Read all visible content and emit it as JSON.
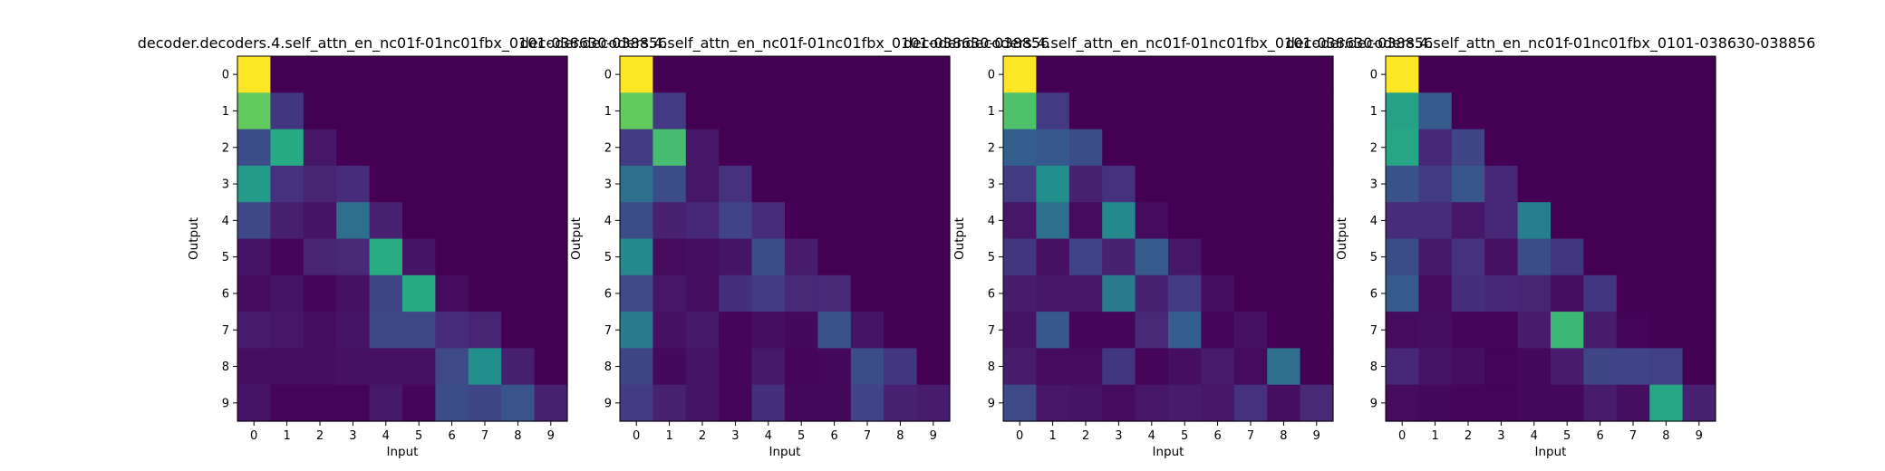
{
  "chart_data": [
    {
      "type": "heatmap",
      "title": "decoder.decoders.4.self_attn_en_nc01f-01nc01fbx_0101-038630-038856",
      "xlabel": "Input",
      "ylabel": "Output",
      "x_ticks": [
        "0",
        "1",
        "2",
        "3",
        "4",
        "5",
        "6",
        "7",
        "8",
        "9"
      ],
      "y_ticks": [
        "0",
        "1",
        "2",
        "3",
        "4",
        "5",
        "6",
        "7",
        "8",
        "9"
      ],
      "colormap": "viridis",
      "value_range": [
        0,
        1
      ],
      "values": [
        [
          1.0,
          0.0,
          0.0,
          0.0,
          0.0,
          0.0,
          0.0,
          0.0,
          0.0,
          0.0
        ],
        [
          0.76,
          0.2,
          0.0,
          0.0,
          0.0,
          0.0,
          0.0,
          0.0,
          0.0,
          0.0
        ],
        [
          0.3,
          0.62,
          0.08,
          0.0,
          0.0,
          0.0,
          0.0,
          0.0,
          0.0,
          0.0
        ],
        [
          0.55,
          0.18,
          0.13,
          0.16,
          0.0,
          0.0,
          0.0,
          0.0,
          0.0,
          0.0
        ],
        [
          0.27,
          0.11,
          0.07,
          0.42,
          0.12,
          0.0,
          0.0,
          0.0,
          0.0,
          0.0
        ],
        [
          0.07,
          0.01,
          0.13,
          0.15,
          0.63,
          0.07,
          0.0,
          0.0,
          0.0,
          0.0
        ],
        [
          0.04,
          0.07,
          0.02,
          0.06,
          0.26,
          0.62,
          0.04,
          0.0,
          0.0,
          0.0
        ],
        [
          0.1,
          0.08,
          0.05,
          0.07,
          0.27,
          0.27,
          0.16,
          0.13,
          0.0,
          0.0
        ],
        [
          0.05,
          0.05,
          0.05,
          0.06,
          0.06,
          0.06,
          0.28,
          0.5,
          0.11,
          0.0
        ],
        [
          0.07,
          0.02,
          0.02,
          0.01,
          0.09,
          0.02,
          0.3,
          0.26,
          0.33,
          0.12
        ]
      ]
    },
    {
      "type": "heatmap",
      "title": "decoder.decoders.4.self_attn_en_nc01f-01nc01fbx_0101-038630-038856",
      "xlabel": "Input",
      "ylabel": "Output",
      "x_ticks": [
        "0",
        "1",
        "2",
        "3",
        "4",
        "5",
        "6",
        "7",
        "8",
        "9"
      ],
      "y_ticks": [
        "0",
        "1",
        "2",
        "3",
        "4",
        "5",
        "6",
        "7",
        "8",
        "9"
      ],
      "colormap": "viridis",
      "value_range": [
        0,
        1
      ],
      "values": [
        [
          1.0,
          0.0,
          0.0,
          0.0,
          0.0,
          0.0,
          0.0,
          0.0,
          0.0,
          0.0
        ],
        [
          0.76,
          0.22,
          0.0,
          0.0,
          0.0,
          0.0,
          0.0,
          0.0,
          0.0,
          0.0
        ],
        [
          0.22,
          0.7,
          0.08,
          0.0,
          0.0,
          0.0,
          0.0,
          0.0,
          0.0,
          0.0
        ],
        [
          0.42,
          0.3,
          0.08,
          0.18,
          0.0,
          0.0,
          0.0,
          0.0,
          0.0,
          0.0
        ],
        [
          0.3,
          0.12,
          0.14,
          0.25,
          0.16,
          0.0,
          0.0,
          0.0,
          0.0,
          0.0
        ],
        [
          0.48,
          0.04,
          0.05,
          0.07,
          0.3,
          0.1,
          0.0,
          0.0,
          0.0,
          0.0
        ],
        [
          0.28,
          0.08,
          0.05,
          0.17,
          0.22,
          0.15,
          0.15,
          0.0,
          0.0,
          0.0
        ],
        [
          0.45,
          0.06,
          0.09,
          0.02,
          0.05,
          0.03,
          0.32,
          0.07,
          0.0,
          0.0
        ],
        [
          0.26,
          0.03,
          0.07,
          0.02,
          0.09,
          0.02,
          0.03,
          0.3,
          0.2,
          0.0
        ],
        [
          0.22,
          0.12,
          0.07,
          0.02,
          0.17,
          0.03,
          0.03,
          0.25,
          0.12,
          0.1
        ]
      ]
    },
    {
      "type": "heatmap",
      "title": "decoder.decoders.4.self_attn_en_nc01f-01nc01fbx_0101-038630-038856",
      "xlabel": "Input",
      "ylabel": "Output",
      "x_ticks": [
        "0",
        "1",
        "2",
        "3",
        "4",
        "5",
        "6",
        "7",
        "8",
        "9"
      ],
      "y_ticks": [
        "0",
        "1",
        "2",
        "3",
        "4",
        "5",
        "6",
        "7",
        "8",
        "9"
      ],
      "colormap": "viridis",
      "value_range": [
        0,
        1
      ],
      "values": [
        [
          1.0,
          0.0,
          0.0,
          0.0,
          0.0,
          0.0,
          0.0,
          0.0,
          0.0,
          0.0
        ],
        [
          0.72,
          0.22,
          0.0,
          0.0,
          0.0,
          0.0,
          0.0,
          0.0,
          0.0,
          0.0
        ],
        [
          0.38,
          0.35,
          0.3,
          0.0,
          0.0,
          0.0,
          0.0,
          0.0,
          0.0,
          0.0
        ],
        [
          0.22,
          0.5,
          0.12,
          0.18,
          0.0,
          0.0,
          0.0,
          0.0,
          0.0,
          0.0
        ],
        [
          0.08,
          0.42,
          0.04,
          0.48,
          0.04,
          0.0,
          0.0,
          0.0,
          0.0,
          0.0
        ],
        [
          0.2,
          0.06,
          0.25,
          0.12,
          0.36,
          0.08,
          0.0,
          0.0,
          0.0,
          0.0
        ],
        [
          0.1,
          0.08,
          0.08,
          0.45,
          0.12,
          0.22,
          0.05,
          0.0,
          0.0,
          0.0
        ],
        [
          0.07,
          0.35,
          0.02,
          0.02,
          0.15,
          0.38,
          0.02,
          0.06,
          0.0,
          0.0
        ],
        [
          0.1,
          0.04,
          0.04,
          0.2,
          0.02,
          0.05,
          0.1,
          0.04,
          0.42,
          0.0
        ],
        [
          0.28,
          0.08,
          0.07,
          0.04,
          0.08,
          0.1,
          0.08,
          0.18,
          0.05,
          0.15
        ]
      ]
    },
    {
      "type": "heatmap",
      "title": "decoder.decoders.4.self_attn_en_nc01f-01nc01fbx_0101-038630-038856",
      "xlabel": "Input",
      "ylabel": "Output",
      "x_ticks": [
        "0",
        "1",
        "2",
        "3",
        "4",
        "5",
        "6",
        "7",
        "8",
        "9"
      ],
      "y_ticks": [
        "0",
        "1",
        "2",
        "3",
        "4",
        "5",
        "6",
        "7",
        "8",
        "9"
      ],
      "colormap": "viridis",
      "value_range": [
        0,
        1
      ],
      "values": [
        [
          1.0,
          0.0,
          0.0,
          0.0,
          0.0,
          0.0,
          0.0,
          0.0,
          0.0,
          0.0
        ],
        [
          0.58,
          0.36,
          0.0,
          0.0,
          0.0,
          0.0,
          0.0,
          0.0,
          0.0,
          0.0
        ],
        [
          0.6,
          0.14,
          0.26,
          0.0,
          0.0,
          0.0,
          0.0,
          0.0,
          0.0,
          0.0
        ],
        [
          0.32,
          0.22,
          0.34,
          0.14,
          0.0,
          0.0,
          0.0,
          0.0,
          0.0,
          0.0
        ],
        [
          0.16,
          0.16,
          0.08,
          0.14,
          0.46,
          0.0,
          0.0,
          0.0,
          0.0,
          0.0
        ],
        [
          0.3,
          0.09,
          0.18,
          0.06,
          0.3,
          0.2,
          0.0,
          0.0,
          0.0,
          0.0
        ],
        [
          0.36,
          0.04,
          0.17,
          0.14,
          0.13,
          0.05,
          0.2,
          0.0,
          0.0,
          0.0
        ],
        [
          0.04,
          0.05,
          0.02,
          0.01,
          0.1,
          0.68,
          0.1,
          0.01,
          0.0,
          0.0
        ],
        [
          0.14,
          0.07,
          0.05,
          0.01,
          0.03,
          0.1,
          0.26,
          0.25,
          0.24,
          0.0
        ],
        [
          0.04,
          0.03,
          0.02,
          0.01,
          0.03,
          0.03,
          0.1,
          0.05,
          0.6,
          0.12
        ]
      ]
    }
  ]
}
